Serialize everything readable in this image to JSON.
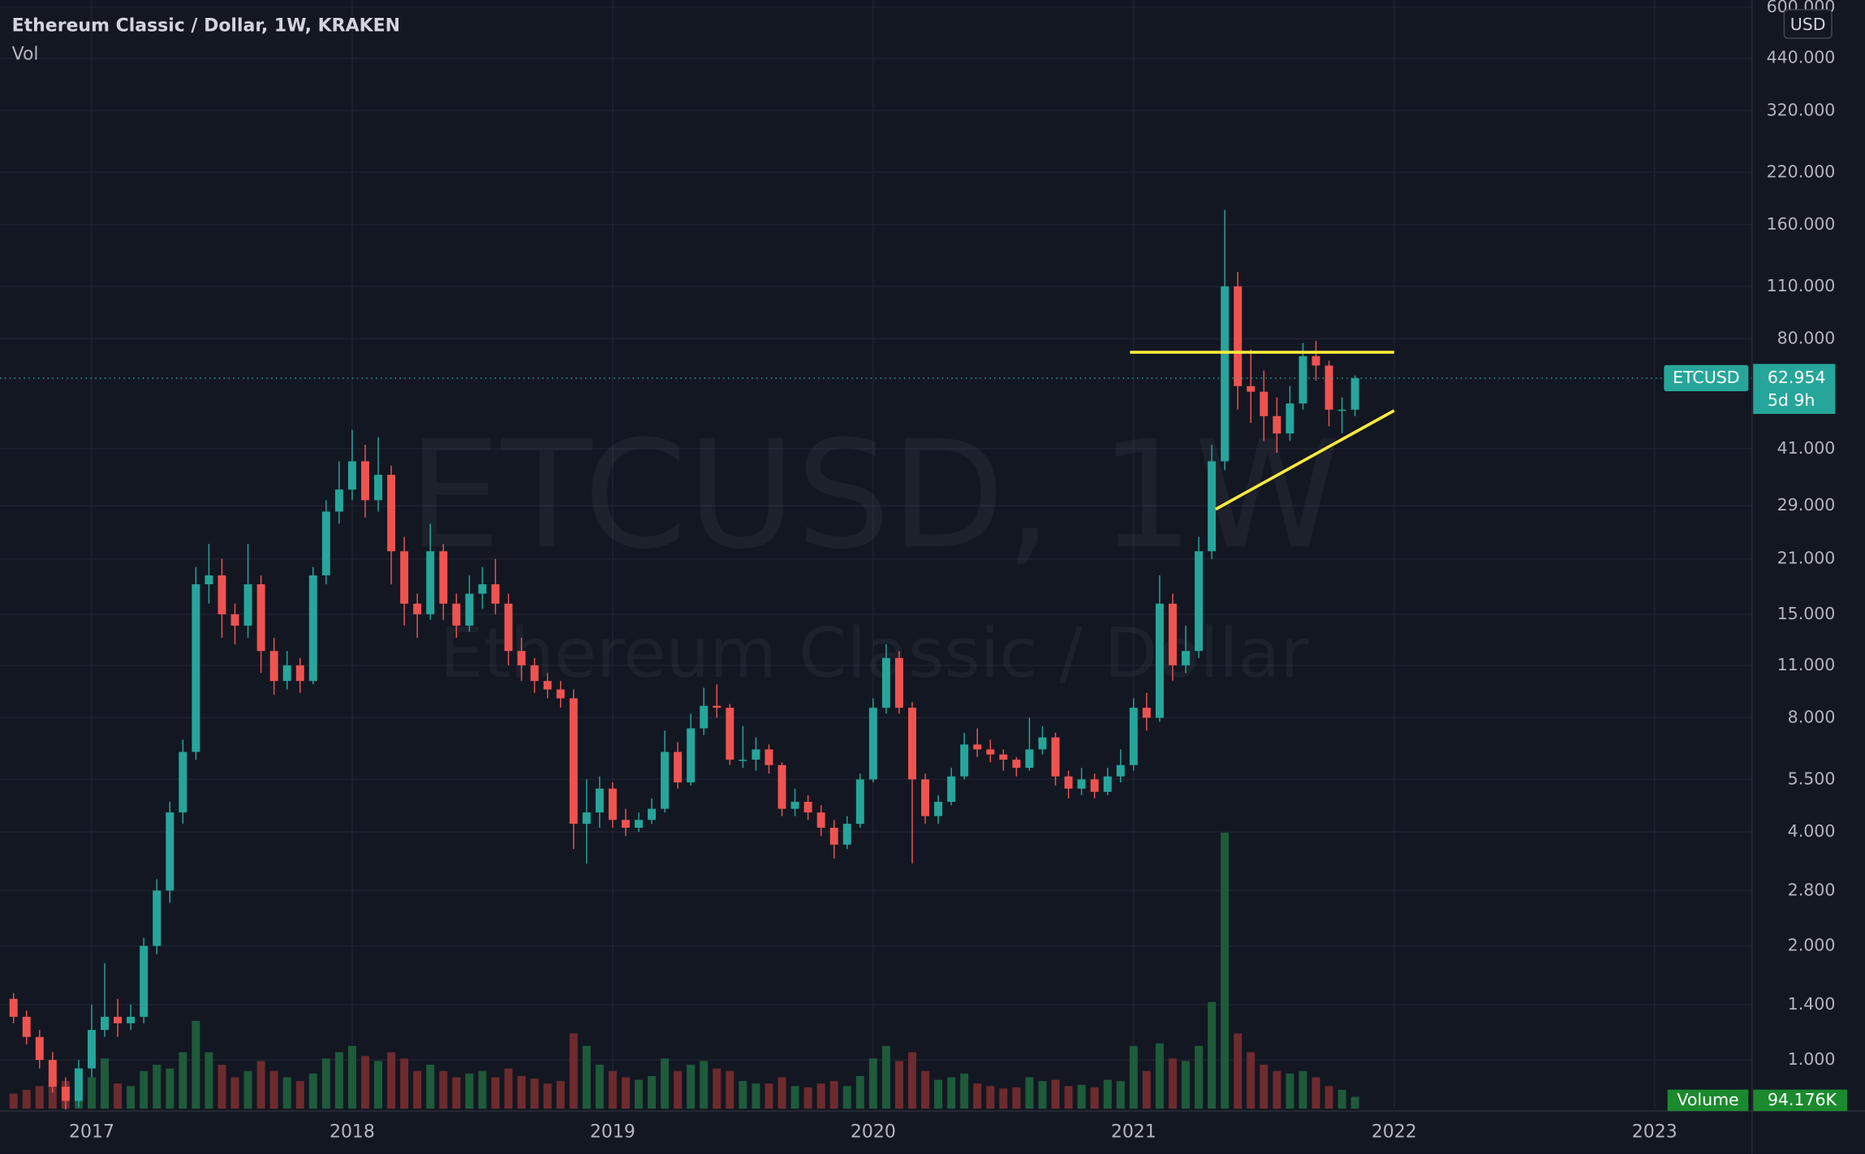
{
  "chart_data": {
    "type": "candlestick",
    "title": "Ethereum Classic / Dollar, 1W, KRAKEN",
    "volume_legend": "Vol",
    "watermark": [
      "ETCUSD, 1W",
      "Ethereum Classic / Dollar"
    ],
    "currency": "USD",
    "symbol": "ETCUSD",
    "countdown": "5d 9h",
    "log_scale": true,
    "grid": true,
    "up_color": "#26a69a",
    "down_color": "#ef5350",
    "volume_up_color": "#1e5b3a",
    "volume_down_color": "#6e2b2e",
    "xlim": [
      2016.648,
      2023.374
    ],
    "xticks": [
      2017,
      2018,
      2019,
      2020,
      2021,
      2022,
      2023
    ],
    "ylim": [
      0.744,
      626
    ],
    "yticks": [
      {
        "value": 1,
        "label": "1.000"
      },
      {
        "value": 1.4,
        "label": "1.400"
      },
      {
        "value": 2,
        "label": "2.000"
      },
      {
        "value": 2.8,
        "label": "2.800"
      },
      {
        "value": 4,
        "label": "4.000"
      },
      {
        "value": 5.5,
        "label": "5.500"
      },
      {
        "value": 8,
        "label": "8.000"
      },
      {
        "value": 11,
        "label": "11.000"
      },
      {
        "value": 15,
        "label": "15.000"
      },
      {
        "value": 21,
        "label": "21.000"
      },
      {
        "value": 29,
        "label": "29.000"
      },
      {
        "value": 41,
        "label": "41.000"
      },
      {
        "value": 80,
        "label": "80.000"
      },
      {
        "value": 110,
        "label": "110.000"
      },
      {
        "value": 160,
        "label": "160.000"
      },
      {
        "value": 220,
        "label": "220.000"
      },
      {
        "value": 320,
        "label": "320.000"
      },
      {
        "value": 440,
        "label": "440.000"
      },
      {
        "value": 600,
        "label": "600.000"
      }
    ],
    "x": [
      2016.7,
      2016.75,
      2016.8,
      2016.85,
      2016.9,
      2016.95,
      2017,
      2017.05,
      2017.1,
      2017.15,
      2017.2,
      2017.25,
      2017.3,
      2017.35,
      2017.4,
      2017.45,
      2017.5,
      2017.55,
      2017.6,
      2017.65,
      2017.7,
      2017.75,
      2017.8,
      2017.85,
      2017.9,
      2017.95,
      2018,
      2018.05,
      2018.1,
      2018.15,
      2018.2,
      2018.25,
      2018.3,
      2018.35,
      2018.4,
      2018.45,
      2018.5,
      2018.55,
      2018.6,
      2018.65,
      2018.7,
      2018.75,
      2018.8,
      2018.85,
      2018.9,
      2018.95,
      2019,
      2019.05,
      2019.1,
      2019.15,
      2019.2,
      2019.25,
      2019.3,
      2019.35,
      2019.4,
      2019.45,
      2019.5,
      2019.55,
      2019.6,
      2019.65,
      2019.7,
      2019.75,
      2019.8,
      2019.85,
      2019.9,
      2019.95,
      2020,
      2020.05,
      2020.1,
      2020.15,
      2020.2,
      2020.25,
      2020.3,
      2020.35,
      2020.4,
      2020.45,
      2020.5,
      2020.55,
      2020.6,
      2020.65,
      2020.7,
      2020.75,
      2020.8,
      2020.85,
      2020.9,
      2020.95,
      2021,
      2021.05,
      2021.1,
      2021.15,
      2021.2,
      2021.25,
      2021.3,
      2021.35,
      2021.4,
      2021.45,
      2021.5,
      2021.55,
      2021.6,
      2021.65,
      2021.7,
      2021.75,
      2021.8,
      2021.85
    ],
    "candles": [
      [
        1.45,
        1.5,
        1.25,
        1.3
      ],
      [
        1.3,
        1.35,
        1.1,
        1.15
      ],
      [
        1.15,
        1.2,
        0.95,
        1.0
      ],
      [
        1.0,
        1.05,
        0.82,
        0.85
      ],
      [
        0.85,
        0.9,
        0.74,
        0.78
      ],
      [
        0.78,
        1.0,
        0.75,
        0.95
      ],
      [
        0.95,
        1.4,
        0.9,
        1.2
      ],
      [
        1.2,
        1.8,
        1.15,
        1.3
      ],
      [
        1.3,
        1.45,
        1.15,
        1.25
      ],
      [
        1.25,
        1.4,
        1.2,
        1.3
      ],
      [
        1.3,
        2.1,
        1.25,
        2.0
      ],
      [
        2.0,
        3.0,
        1.9,
        2.8
      ],
      [
        2.8,
        4.8,
        2.6,
        4.5
      ],
      [
        4.5,
        7.0,
        4.2,
        6.5
      ],
      [
        6.5,
        20,
        6.2,
        18
      ],
      [
        18,
        23,
        16,
        19
      ],
      [
        19,
        21,
        13,
        15
      ],
      [
        15,
        16,
        12.5,
        14
      ],
      [
        14,
        23,
        13,
        18
      ],
      [
        18,
        19,
        10.5,
        12
      ],
      [
        12,
        13,
        9.2,
        10
      ],
      [
        10,
        12,
        9.5,
        11
      ],
      [
        11,
        11.5,
        9.3,
        10
      ],
      [
        10,
        20,
        9.8,
        19
      ],
      [
        19,
        30,
        18,
        28
      ],
      [
        28,
        38,
        26,
        32
      ],
      [
        32,
        46,
        30,
        38
      ],
      [
        38,
        42,
        27,
        30
      ],
      [
        30,
        44,
        28,
        35
      ],
      [
        35,
        37,
        18,
        22
      ],
      [
        22,
        24,
        14,
        16
      ],
      [
        16,
        17,
        13,
        15
      ],
      [
        15,
        26,
        14.5,
        22
      ],
      [
        22,
        23,
        14.5,
        16
      ],
      [
        16,
        17,
        13,
        14
      ],
      [
        14,
        19,
        13.5,
        17
      ],
      [
        17,
        20,
        15.5,
        18
      ],
      [
        18,
        21,
        15,
        16
      ],
      [
        16,
        17,
        11,
        12
      ],
      [
        12,
        13,
        10,
        11
      ],
      [
        11,
        11.5,
        9.3,
        10
      ],
      [
        10,
        10.5,
        9,
        9.5
      ],
      [
        9.5,
        10,
        8.5,
        9
      ],
      [
        9,
        9.5,
        3.6,
        4.2
      ],
      [
        4.2,
        5.5,
        3.3,
        4.5
      ],
      [
        4.5,
        5.6,
        4.1,
        5.2
      ],
      [
        5.2,
        5.4,
        4.1,
        4.3
      ],
      [
        4.3,
        4.6,
        3.9,
        4.1
      ],
      [
        4.1,
        4.5,
        4.0,
        4.3
      ],
      [
        4.3,
        4.9,
        4.2,
        4.6
      ],
      [
        4.6,
        7.4,
        4.5,
        6.5
      ],
      [
        6.5,
        6.9,
        5.2,
        5.4
      ],
      [
        5.4,
        8.2,
        5.3,
        7.5
      ],
      [
        7.5,
        9.6,
        7.2,
        8.6
      ],
      [
        8.6,
        9.8,
        8.0,
        8.5
      ],
      [
        8.5,
        8.7,
        6.0,
        6.2
      ],
      [
        6.2,
        7.6,
        5.9,
        6.2
      ],
      [
        6.2,
        7.1,
        5.8,
        6.6
      ],
      [
        6.6,
        6.8,
        5.7,
        6.0
      ],
      [
        6.0,
        6.1,
        4.4,
        4.6
      ],
      [
        4.6,
        5.2,
        4.4,
        4.8
      ],
      [
        4.8,
        5.0,
        4.3,
        4.5
      ],
      [
        4.5,
        4.7,
        3.9,
        4.1
      ],
      [
        4.1,
        4.3,
        3.4,
        3.7
      ],
      [
        3.7,
        4.4,
        3.6,
        4.2
      ],
      [
        4.2,
        5.7,
        4.1,
        5.5
      ],
      [
        5.5,
        9.0,
        5.4,
        8.5
      ],
      [
        8.5,
        12.5,
        8.2,
        11.5
      ],
      [
        11.5,
        12,
        8.2,
        8.5
      ],
      [
        8.5,
        8.8,
        3.3,
        5.5
      ],
      [
        5.5,
        5.7,
        4.2,
        4.4
      ],
      [
        4.4,
        5.0,
        4.2,
        4.8
      ],
      [
        4.8,
        5.9,
        4.7,
        5.6
      ],
      [
        5.6,
        7.3,
        5.5,
        6.8
      ],
      [
        6.8,
        7.5,
        6.3,
        6.6
      ],
      [
        6.6,
        7.0,
        6.1,
        6.4
      ],
      [
        6.4,
        6.6,
        5.8,
        6.2
      ],
      [
        6.2,
        6.3,
        5.6,
        5.9
      ],
      [
        5.9,
        8.0,
        5.8,
        6.6
      ],
      [
        6.6,
        7.6,
        6.4,
        7.1
      ],
      [
        7.1,
        7.3,
        5.3,
        5.6
      ],
      [
        5.6,
        5.8,
        4.9,
        5.2
      ],
      [
        5.2,
        5.9,
        5.0,
        5.5
      ],
      [
        5.5,
        5.7,
        4.9,
        5.1
      ],
      [
        5.1,
        5.9,
        5.0,
        5.6
      ],
      [
        5.6,
        6.6,
        5.4,
        6.0
      ],
      [
        6.0,
        9.0,
        5.8,
        8.5
      ],
      [
        8.5,
        9.3,
        7.4,
        8.0
      ],
      [
        8.0,
        19,
        7.8,
        16
      ],
      [
        16,
        17,
        10,
        11
      ],
      [
        11,
        14,
        10.5,
        12
      ],
      [
        12,
        24,
        11.5,
        22
      ],
      [
        22,
        42,
        21,
        38
      ],
      [
        38,
        175,
        36,
        110
      ],
      [
        110,
        120,
        52,
        60
      ],
      [
        60,
        75,
        48,
        58
      ],
      [
        58,
        66,
        43,
        50
      ],
      [
        50,
        56,
        40,
        45
      ],
      [
        45,
        60,
        43,
        54
      ],
      [
        54,
        78,
        52,
        72
      ],
      [
        72,
        79,
        62,
        68
      ],
      [
        68,
        70,
        47,
        52
      ],
      [
        52,
        56,
        45,
        52
      ],
      [
        52,
        64,
        50,
        62.954
      ]
    ],
    "volume": {
      "name": "Volume",
      "values": [
        120000,
        150000,
        180000,
        250000,
        220000,
        200000,
        250000,
        400000,
        200000,
        180000,
        300000,
        350000,
        320000,
        450000,
        700000,
        450000,
        350000,
        250000,
        300000,
        380000,
        300000,
        250000,
        220000,
        280000,
        400000,
        450000,
        500000,
        420000,
        380000,
        450000,
        400000,
        300000,
        350000,
        300000,
        250000,
        280000,
        300000,
        250000,
        320000,
        260000,
        240000,
        200000,
        220000,
        600000,
        500000,
        350000,
        300000,
        250000,
        230000,
        260000,
        400000,
        300000,
        350000,
        380000,
        320000,
        300000,
        220000,
        200000,
        200000,
        250000,
        180000,
        170000,
        200000,
        220000,
        180000,
        260000,
        400000,
        500000,
        380000,
        450000,
        300000,
        230000,
        250000,
        280000,
        200000,
        180000,
        160000,
        170000,
        250000,
        220000,
        230000,
        180000,
        190000,
        170000,
        230000,
        220000,
        500000,
        300000,
        520000,
        400000,
        380000,
        500000,
        850000,
        2200000,
        600000,
        450000,
        350000,
        300000,
        280000,
        300000,
        250000,
        180000,
        150000,
        94176
      ],
      "last_value_label": "94.176K"
    },
    "trendlines": [
      {
        "color": "#ffeb3b",
        "x": [
          2020.986,
          2022.0
        ],
        "y": [
          73.7,
          73.7
        ]
      },
      {
        "color": "#ffeb3b",
        "x": [
          2021.315,
          2022.0
        ],
        "y": [
          28.4,
          51.7
        ]
      }
    ]
  }
}
